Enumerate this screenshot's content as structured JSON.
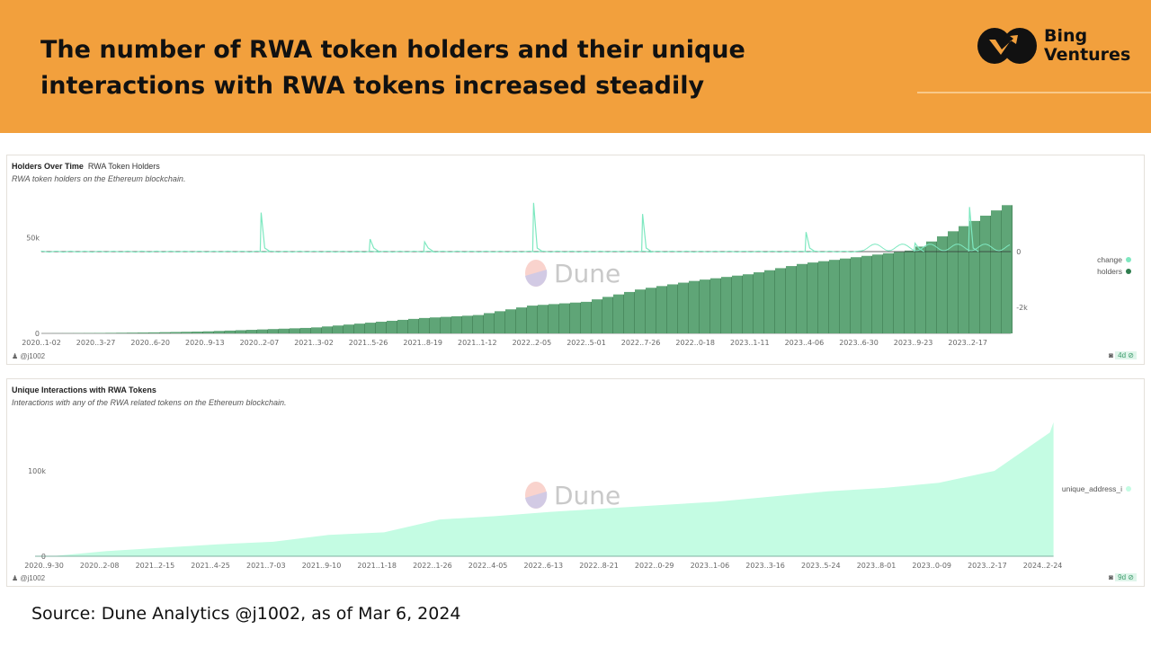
{
  "header": {
    "title": "The number of RWA token holders and their unique interactions with RWA tokens increased steadily",
    "logo_text_1": "Bing",
    "logo_text_2": "Ventures",
    "background": "#F2A03D"
  },
  "source": "Source: Dune Analytics @j1002, as of Mar 6, 2024",
  "watermark": "Dune",
  "chart_data": [
    {
      "type": "bar",
      "title": "Holders Over Time",
      "subtitle": "RWA Token Holders",
      "description": "RWA token holders on the Ethereum blockchain.",
      "author": "@j1002",
      "badge": "4d",
      "categories": [
        "2020..1-02",
        "2020..3-27",
        "2020..6-20",
        "2020..9-13",
        "2020..2-07",
        "2021..3-02",
        "2021..5-26",
        "2021..8-19",
        "2021..1-12",
        "2022..2-05",
        "2022..5-01",
        "2022..7-26",
        "2022..0-18",
        "2023..1-11",
        "2023..4-06",
        "2023..6-30",
        "2023..9-23",
        "2023..2-17"
      ],
      "left_axis": {
        "ticks": [
          "0",
          "50k"
        ],
        "range": [
          0,
          70000
        ]
      },
      "right_axis": {
        "ticks": [
          "0",
          "-2k"
        ],
        "range": [
          -3000,
          3000
        ]
      },
      "series": [
        {
          "name": "holders",
          "kind": "bar",
          "color": "#5FA577",
          "values": [
            0,
            200,
            500,
            1000,
            2000,
            3000,
            5500,
            8000,
            9500,
            14500,
            16500,
            23000,
            27500,
            31000,
            36500,
            40000,
            43500,
            57000
          ],
          "latest_value": 68000
        },
        {
          "name": "change",
          "kind": "line",
          "color": "#7EE8C0",
          "baseline": 0,
          "spikes": [
            {
              "near": "2020..2-07",
              "value": 1400
            },
            {
              "near": "2021..5-26",
              "value": 450
            },
            {
              "near": "2021..8-19",
              "value": 350
            },
            {
              "near": "2022..2-05",
              "value": 1750
            },
            {
              "near": "2022..7-26",
              "value": 1350
            },
            {
              "near": "2023..4-06",
              "value": 700
            },
            {
              "near": "2023..9-23",
              "value": 300
            },
            {
              "near": "2023..2-17",
              "value": 1600
            }
          ]
        }
      ],
      "legend": {
        "position": "right",
        "items": [
          "change",
          "holders"
        ]
      }
    },
    {
      "type": "area",
      "title": "Unique Interactions with RWA Tokens",
      "description": "Interactions with any of the RWA related tokens on the Ethereum blockchain.",
      "author": "@j1002",
      "badge": "9d",
      "categories": [
        "2020..9-30",
        "2020..2-08",
        "2021..2-15",
        "2021..4-25",
        "2021..7-03",
        "2021..9-10",
        "2021..1-18",
        "2022..1-26",
        "2022..4-05",
        "2022..6-13",
        "2022..8-21",
        "2022..0-29",
        "2023..1-06",
        "2023..3-16",
        "2023..5-24",
        "2023..8-01",
        "2023..0-09",
        "2023..2-17",
        "2024..2-24"
      ],
      "y_axis": {
        "ticks": [
          "0",
          "100k"
        ],
        "range": [
          0,
          170000
        ]
      },
      "series": [
        {
          "name": "unique_address_i",
          "color": "#C4FCE3",
          "values": [
            0,
            6000,
            10000,
            14000,
            17000,
            25000,
            28000,
            43000,
            47000,
            52000,
            56000,
            60000,
            64000,
            70000,
            76000,
            80000,
            86000,
            100000,
            145000
          ],
          "latest_value": 157000
        }
      ],
      "legend": {
        "position": "right",
        "items": [
          "unique_address_i"
        ]
      }
    }
  ]
}
